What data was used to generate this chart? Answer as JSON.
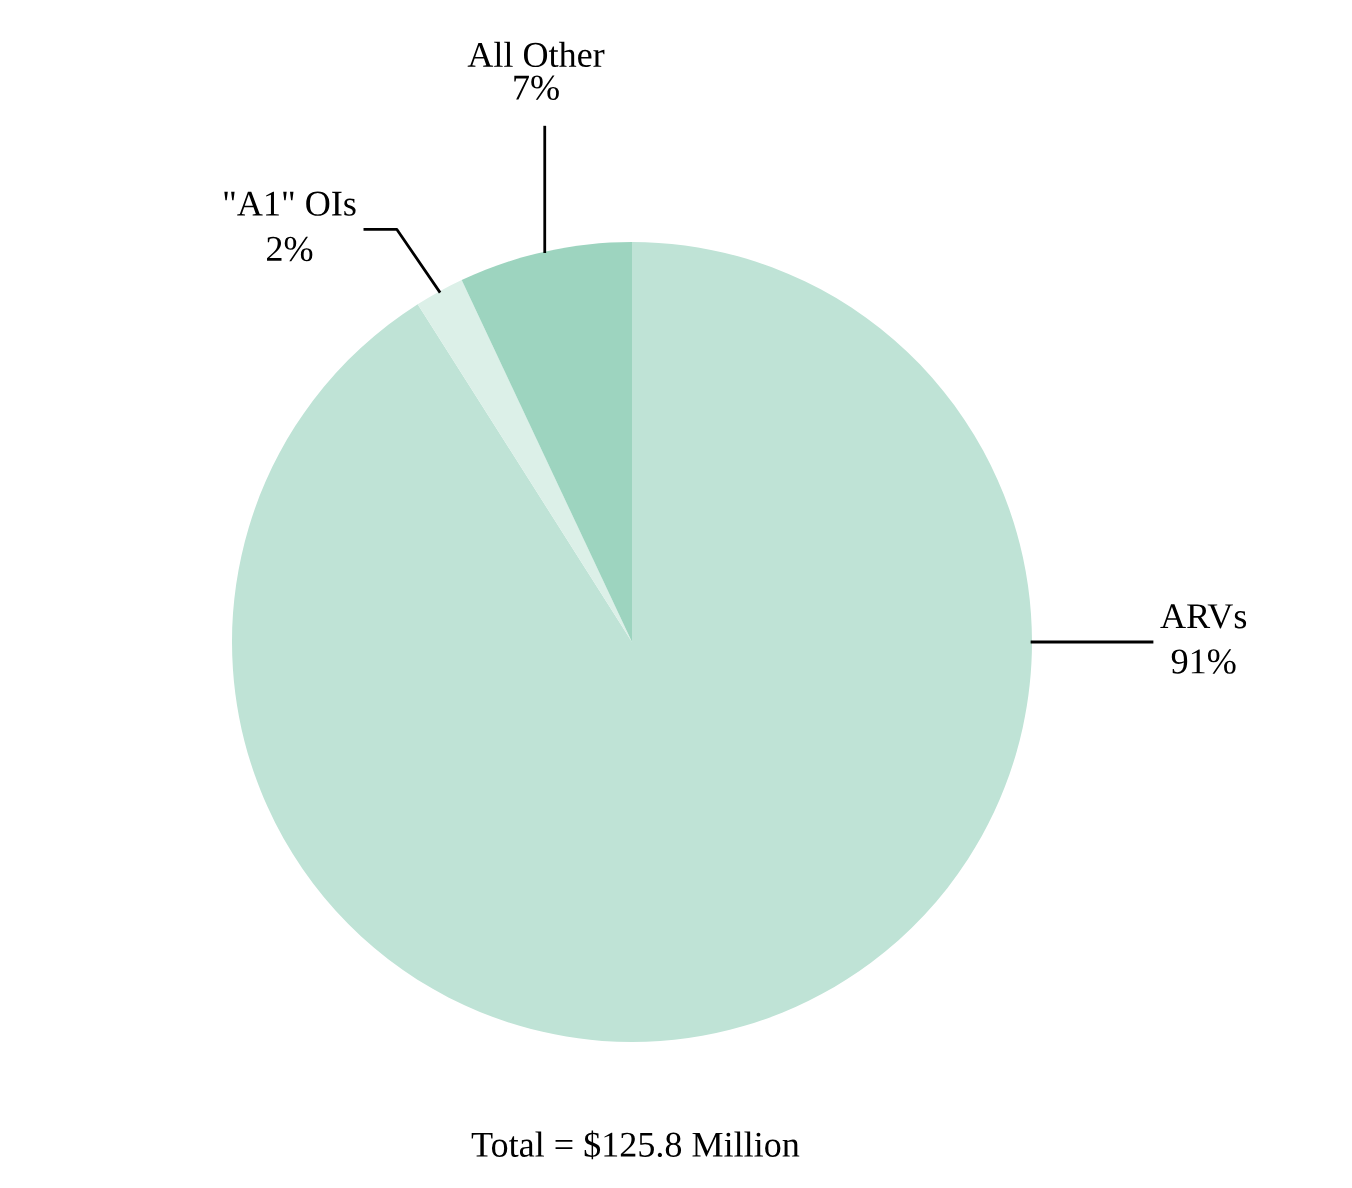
{
  "chart_data": {
    "type": "pie",
    "categories": [
      "ARVs",
      "\"A1\" OIs",
      "All Other"
    ],
    "values": [
      91,
      2,
      7
    ],
    "colors": [
      "#bfe3d6",
      "#dcf0e8",
      "#9dd4bf"
    ],
    "value_labels": [
      "91%",
      "2%",
      "7%"
    ],
    "legend": false,
    "annotations": [
      "Total = $125.8 Million"
    ]
  }
}
